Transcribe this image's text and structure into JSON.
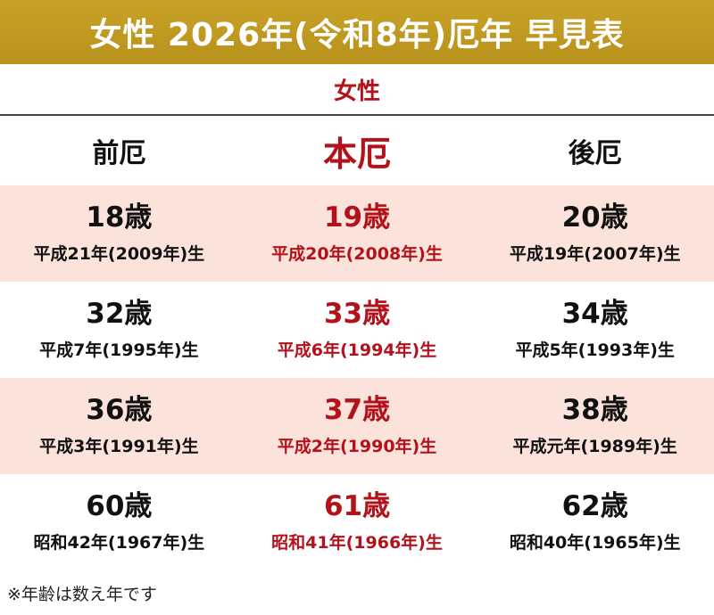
{
  "title": "女性 2026年(令和8年)厄年 早見表",
  "subtitle": "女性",
  "columns": [
    "前厄",
    "本厄",
    "後厄"
  ],
  "rows": [
    {
      "shaded": true,
      "cells": [
        {
          "age": "18歳",
          "birth": "平成21年(2009年)生"
        },
        {
          "age": "19歳",
          "birth": "平成20年(2008年)生"
        },
        {
          "age": "20歳",
          "birth": "平成19年(2007年)生"
        }
      ]
    },
    {
      "shaded": false,
      "cells": [
        {
          "age": "32歳",
          "birth": "平成7年(1995年)生"
        },
        {
          "age": "33歳",
          "birth": "平成6年(1994年)生"
        },
        {
          "age": "34歳",
          "birth": "平成5年(1993年)生"
        }
      ]
    },
    {
      "shaded": true,
      "cells": [
        {
          "age": "36歳",
          "birth": "平成3年(1991年)生"
        },
        {
          "age": "37歳",
          "birth": "平成2年(1990年)生"
        },
        {
          "age": "38歳",
          "birth": "平成元年(1989年)生"
        }
      ]
    },
    {
      "shaded": false,
      "cells": [
        {
          "age": "60歳",
          "birth": "昭和42年(1967年)生"
        },
        {
          "age": "61歳",
          "birth": "昭和41年(1966年)生"
        },
        {
          "age": "62歳",
          "birth": "昭和40年(1965年)生"
        }
      ]
    }
  ],
  "footnote": "※年齢は数え年です",
  "colors": {
    "banner": "#c9a227",
    "accent": "#b3121b",
    "shade": "#fbe3dc"
  }
}
